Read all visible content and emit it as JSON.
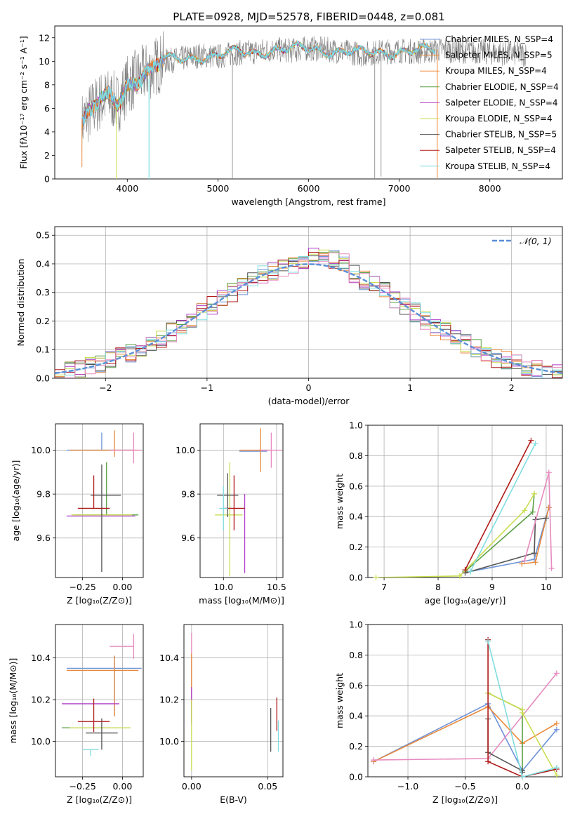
{
  "figure": {
    "title": "PLATE=0928, MJD=52578, FIBERID=0448, z=0.081"
  },
  "colors": {
    "chabrier_miles": "#6f94d8",
    "salpeter_miles": "#e8893b",
    "kroupa_miles": "#f08a3a",
    "chabrier_elodie": "#5a9e45",
    "salpeter_elodie": "#b03cc8",
    "kroupa_elodie": "#c9de52",
    "chabrier_stelib": "#555555",
    "salpeter_stelib": "#b01a1a",
    "kroupa_stelib": "#7fdde0",
    "pink": "#e88bbf",
    "gray_data": "#7f7f7f",
    "normal_curve": "#5b8fd6"
  },
  "chart_data": [
    {
      "id": "spectrum",
      "type": "line",
      "xlabel": "wavelength [Angstrom, rest frame]",
      "ylabel": "Flux [fλ10⁻¹⁷ erg cm⁻² s⁻¹ A⁻¹]",
      "xlim": [
        3200,
        8800
      ],
      "ylim": [
        0,
        13
      ],
      "xticks": [
        4000,
        5000,
        6000,
        7000,
        8000
      ],
      "yticks": [
        0,
        2,
        4,
        6,
        8,
        10,
        12
      ],
      "legend_position": "right",
      "legend": [
        "Chabrier MILES, N_SSP=4",
        "Salpeter MILES, N_SSP=5",
        "Kroupa MILES, N_SSP=4",
        "Chabrier ELODIE, N_SSP=4",
        "Salpeter ELODIE, N_SSP=4",
        "Kroupa ELODIE, N_SSP=4",
        "Chabrier STELIB, N_SSP=5",
        "Salpeter STELIB, N_SSP=4",
        "Kroupa STELIB, N_SSP=4"
      ],
      "continuum": {
        "x": [
          3500,
          3600,
          3700,
          3800,
          3900,
          4000,
          4200,
          4400,
          4600,
          4800,
          5000,
          5200,
          5400,
          5600,
          5800,
          6000,
          6200,
          6400,
          6600,
          6800,
          7000,
          7200,
          7400
        ],
        "y": [
          4.8,
          5.8,
          6.6,
          6.9,
          6.4,
          8.0,
          9.0,
          10.0,
          10.2,
          10.5,
          10.4,
          10.7,
          10.8,
          11.0,
          10.9,
          11.1,
          11.0,
          10.8,
          10.6,
          10.8,
          10.9,
          10.8,
          10.9
        ]
      },
      "data_range": [
        3500,
        8400
      ],
      "model_range": [
        3500,
        7400
      ]
    },
    {
      "id": "residuals",
      "type": "step",
      "xlabel": "(data-model)/error",
      "ylabel": "Normed distribution",
      "xlim": [
        -2.5,
        2.5
      ],
      "ylim": [
        0,
        0.53
      ],
      "xticks": [
        -2,
        -1,
        0,
        1,
        2
      ],
      "yticks": [
        0.0,
        0.1,
        0.2,
        0.3,
        0.4,
        0.5
      ],
      "legend": [
        "𝒩(0, 1)"
      ],
      "legend_position": "top-right",
      "grid": true
    },
    {
      "id": "age_vs_Z",
      "type": "errorbar",
      "xlabel": "Z [log₁₀(Z/Z⊙)]",
      "ylabel": "age  [log₁₀(age/yr)]",
      "xlim": [
        -0.42,
        0.13
      ],
      "ylim": [
        9.42,
        10.12
      ],
      "xticks": [
        -0.25,
        0.0
      ],
      "xticklabels": [
        "−0.25",
        "0.00"
      ],
      "yticks": [
        9.6,
        9.8,
        10.0
      ],
      "grid": true,
      "points": [
        {
          "x": -0.13,
          "xerr": [
            0.22,
            0.2
          ],
          "y": 10.0,
          "yerr": [
            0.0,
            0.08
          ],
          "color": "chabrier_miles"
        },
        {
          "x": -0.05,
          "xerr": [
            0.28,
            0.15
          ],
          "y": 10.0,
          "yerr": [
            0.03,
            0.09
          ],
          "color": "salpeter_miles"
        },
        {
          "x": 0.07,
          "xerr": [
            0.15,
            0.05
          ],
          "y": 10.0,
          "yerr": [
            0.06,
            0.08
          ],
          "color": "pink"
        },
        {
          "x": -0.1,
          "xerr": [
            0.2,
            0.2
          ],
          "y": 9.705,
          "yerr": [
            0.0,
            0.24
          ],
          "color": "chabrier_elodie"
        },
        {
          "x": -0.15,
          "xerr": [
            0.2,
            0.23
          ],
          "y": 9.7,
          "yerr": [
            0.0,
            0.0
          ],
          "color": "salpeter_elodie"
        },
        {
          "x": -0.12,
          "xerr": [
            0.2,
            0.18
          ],
          "y": 9.705,
          "yerr": [
            0.0,
            0.0
          ],
          "color": "kroupa_elodie"
        },
        {
          "x": -0.13,
          "xerr": [
            0.07,
            0.12
          ],
          "y": 9.795,
          "yerr": [
            0.35,
            0.14
          ],
          "color": "chabrier_stelib"
        },
        {
          "x": -0.18,
          "xerr": [
            0.1,
            0.1
          ],
          "y": 9.735,
          "yerr": [
            0.0,
            0.15
          ],
          "color": "salpeter_stelib"
        }
      ]
    },
    {
      "id": "age_vs_mass",
      "type": "errorbar",
      "xlabel": "mass [log₁₀(M/M⊙)]",
      "ylabel": "",
      "xlim": [
        9.78,
        10.56
      ],
      "ylim": [
        9.42,
        10.12
      ],
      "xticks": [
        10.0,
        10.5
      ],
      "yticks": [
        9.6,
        9.8,
        10.0
      ],
      "grid": true,
      "points": [
        {
          "x": 10.35,
          "xerr": [
            0.2,
            0.06
          ],
          "y": 9.995,
          "yerr": [
            0.0,
            0.0
          ],
          "color": "chabrier_miles"
        },
        {
          "x": 10.35,
          "xerr": [
            0.2,
            0.08
          ],
          "y": 10.0,
          "yerr": [
            0.1,
            0.1
          ],
          "color": "salpeter_miles"
        },
        {
          "x": 10.45,
          "xerr": [
            0.1,
            0.1
          ],
          "y": 10.0,
          "yerr": [
            0.08,
            0.08
          ],
          "color": "pink"
        },
        {
          "x": 10.06,
          "xerr": [
            0.14,
            0.12
          ],
          "y": 9.705,
          "yerr": [
            0.28,
            0.24
          ],
          "color": "kroupa_elodie"
        },
        {
          "x": 10.2,
          "xerr": [
            0.0,
            0.0
          ],
          "y": 9.7,
          "yerr": [
            0.26,
            0.1
          ],
          "color": "salpeter_elodie"
        },
        {
          "x": 10.04,
          "xerr": [
            0.1,
            0.1
          ],
          "y": 9.795,
          "yerr": [
            0.1,
            0.1
          ],
          "color": "chabrier_stelib"
        },
        {
          "x": 10.1,
          "xerr": [
            0.1,
            0.1
          ],
          "y": 9.735,
          "yerr": [
            0.1,
            0.15
          ],
          "color": "salpeter_stelib"
        },
        {
          "x": 10.0,
          "xerr": [
            0.04,
            0.04
          ],
          "y": 9.735,
          "yerr": [
            0.1,
            0.1
          ],
          "color": "kroupa_stelib"
        }
      ]
    },
    {
      "id": "weight_vs_age",
      "type": "line",
      "xlabel": "age  [log₁₀(age/yr)]",
      "ylabel": "mass weight",
      "xlim": [
        6.7,
        10.3
      ],
      "ylim": [
        0,
        1.0
      ],
      "xticks": [
        7,
        8,
        9,
        10
      ],
      "yticks": [
        0.0,
        0.2,
        0.4,
        0.6,
        0.8,
        1.0
      ],
      "grid": true,
      "series": [
        {
          "color": "chabrier_miles",
          "x": [
            8.6,
            9.78,
            10.05
          ],
          "y": [
            0.04,
            0.12,
            0.46
          ]
        },
        {
          "color": "salpeter_miles",
          "x": [
            9.55,
            9.8,
            10.05
          ],
          "y": [
            0.09,
            0.1,
            0.46
          ]
        },
        {
          "color": "chabrier_elodie",
          "x": [
            8.5,
            9.75,
            9.78
          ],
          "y": [
            0.04,
            0.43,
            0.55
          ]
        },
        {
          "color": "kroupa_elodie",
          "x": [
            6.85,
            8.4,
            9.6,
            9.78
          ],
          "y": [
            0.0,
            0.01,
            0.44,
            0.55
          ]
        },
        {
          "color": "chabrier_stelib",
          "x": [
            8.5,
            9.78,
            9.8,
            10.0
          ],
          "y": [
            0.03,
            0.16,
            0.38,
            0.39
          ]
        },
        {
          "color": "salpeter_stelib",
          "x": [
            8.5,
            9.72
          ],
          "y": [
            0.05,
            0.9
          ]
        },
        {
          "color": "kroupa_stelib",
          "x": [
            8.6,
            9.8
          ],
          "y": [
            0.04,
            0.88
          ]
        },
        {
          "color": "pink",
          "x": [
            9.6,
            10.05,
            10.1
          ],
          "y": [
            0.11,
            0.69,
            0.06
          ]
        }
      ]
    },
    {
      "id": "mass_vs_Z",
      "type": "errorbar",
      "xlabel": "Z [log₁₀(Z/Z⊙)]",
      "ylabel": "mass [log₁₀(M/M⊙)]",
      "xlim": [
        -0.42,
        0.13
      ],
      "ylim": [
        9.83,
        10.56
      ],
      "xticks": [
        -0.25,
        0.0
      ],
      "xticklabels": [
        "−0.25",
        "0.00"
      ],
      "yticks": [
        10.0,
        10.2,
        10.4
      ],
      "grid": true,
      "points": [
        {
          "x": -0.05,
          "xerr": [
            0.3,
            0.17
          ],
          "y": 10.35,
          "yerr": [
            0.23,
            0.06
          ],
          "color": "chabrier_miles"
        },
        {
          "x": -0.05,
          "xerr": [
            0.3,
            0.15
          ],
          "y": 10.34,
          "yerr": [
            0.22,
            0.07
          ],
          "color": "salpeter_miles"
        },
        {
          "x": 0.07,
          "xerr": [
            0.15,
            0.0
          ],
          "y": 10.455,
          "yerr": [
            0.06,
            0.06
          ],
          "color": "pink"
        },
        {
          "x": -0.15,
          "xerr": [
            0.23,
            0.2
          ],
          "y": 10.065,
          "yerr": [
            0.0,
            0.0
          ],
          "color": "chabrier_elodie"
        },
        {
          "x": -0.15,
          "xerr": [
            0.23,
            0.13
          ],
          "y": 10.18,
          "yerr": [
            0.0,
            0.0
          ],
          "color": "salpeter_elodie"
        },
        {
          "x": -0.13,
          "xerr": [
            0.2,
            0.18
          ],
          "y": 10.065,
          "yerr": [
            0.0,
            0.0
          ],
          "color": "kroupa_elodie"
        },
        {
          "x": -0.13,
          "xerr": [
            0.1,
            0.1
          ],
          "y": 10.04,
          "yerr": [
            0.08,
            0.07
          ],
          "color": "chabrier_stelib"
        },
        {
          "x": -0.18,
          "xerr": [
            0.1,
            0.1
          ],
          "y": 10.095,
          "yerr": [
            0.05,
            0.11
          ],
          "color": "salpeter_stelib"
        },
        {
          "x": -0.2,
          "xerr": [
            0.05,
            0.05
          ],
          "y": 9.96,
          "yerr": [
            0.03,
            0.0
          ],
          "color": "kroupa_stelib"
        }
      ]
    },
    {
      "id": "ebv",
      "type": "errorbar",
      "xlabel": "E(B-V)",
      "ylabel": "",
      "xlim": [
        -0.005,
        0.06
      ],
      "ylim": [
        9.83,
        10.56
      ],
      "xticks": [
        0.0,
        0.05
      ],
      "xticklabels": [
        "0.00",
        "0.05"
      ],
      "yticks": [
        10.0,
        10.2,
        10.4
      ],
      "grid": true,
      "vlines": [
        {
          "x": 0.0,
          "y0": 10.13,
          "y1": 10.52,
          "color": "pink"
        },
        {
          "x": 0.0,
          "y0": 10.1,
          "y1": 10.42,
          "color": "salpeter_miles"
        },
        {
          "x": 0.0,
          "y0": 10.08,
          "y1": 10.26,
          "color": "salpeter_elodie"
        },
        {
          "x": 0.0,
          "y0": 9.86,
          "y1": 10.2,
          "color": "kroupa_elodie"
        },
        {
          "x": 0.052,
          "y0": 9.95,
          "y1": 10.16,
          "color": "chabrier_stelib"
        },
        {
          "x": 0.056,
          "y0": 10.05,
          "y1": 10.21,
          "color": "salpeter_stelib"
        },
        {
          "x": 0.057,
          "y0": 9.95,
          "y1": 10.1,
          "color": "kroupa_stelib"
        }
      ]
    },
    {
      "id": "weight_vs_Z",
      "type": "line",
      "xlabel": "Z [log₁₀(Z/Z⊙)]",
      "ylabel": "mass weight",
      "xlim": [
        -1.35,
        0.35
      ],
      "ylim": [
        0,
        1.0
      ],
      "xticks": [
        -1.0,
        -0.5,
        0.0
      ],
      "xticklabels": [
        "−1.0",
        "−0.5",
        "0.0"
      ],
      "yticks": [
        0.0,
        0.2,
        0.4,
        0.6,
        0.8,
        1.0
      ],
      "grid": true,
      "series": [
        {
          "color": "chabrier_miles",
          "x": [
            -1.3,
            -0.3,
            0.0,
            0.3
          ],
          "y": [
            0.1,
            0.48,
            0.04,
            0.31
          ]
        },
        {
          "color": "salpeter_miles",
          "x": [
            -1.3,
            -0.3,
            0.0,
            0.3
          ],
          "y": [
            0.1,
            0.46,
            0.22,
            0.35
          ]
        },
        {
          "color": "pink",
          "x": [
            -1.3,
            -0.3,
            0.3,
            0.3
          ],
          "y": [
            0.11,
            0.12,
            0.68,
            0.68
          ]
        },
        {
          "color": "chabrier_elodie",
          "x": [
            -0.3,
            0.0,
            0.0
          ],
          "y": [
            0.55,
            0.44,
            0.04
          ]
        },
        {
          "color": "kroupa_elodie",
          "x": [
            -0.3,
            0.0,
            0.0,
            0.3
          ],
          "y": [
            0.55,
            0.44,
            0.42,
            0.01
          ]
        },
        {
          "color": "chabrier_stelib",
          "x": [
            -0.3,
            -0.3,
            0.0,
            0.0
          ],
          "y": [
            0.38,
            0.16,
            0.04,
            0.03
          ]
        },
        {
          "color": "salpeter_stelib",
          "x": [
            -0.3,
            -0.3,
            0.0,
            0.3
          ],
          "y": [
            0.9,
            0.1,
            0.0,
            0.05
          ]
        },
        {
          "color": "kroupa_stelib",
          "x": [
            -0.3,
            0.0,
            0.3
          ],
          "y": [
            0.89,
            0.0,
            0.06
          ]
        }
      ]
    }
  ]
}
